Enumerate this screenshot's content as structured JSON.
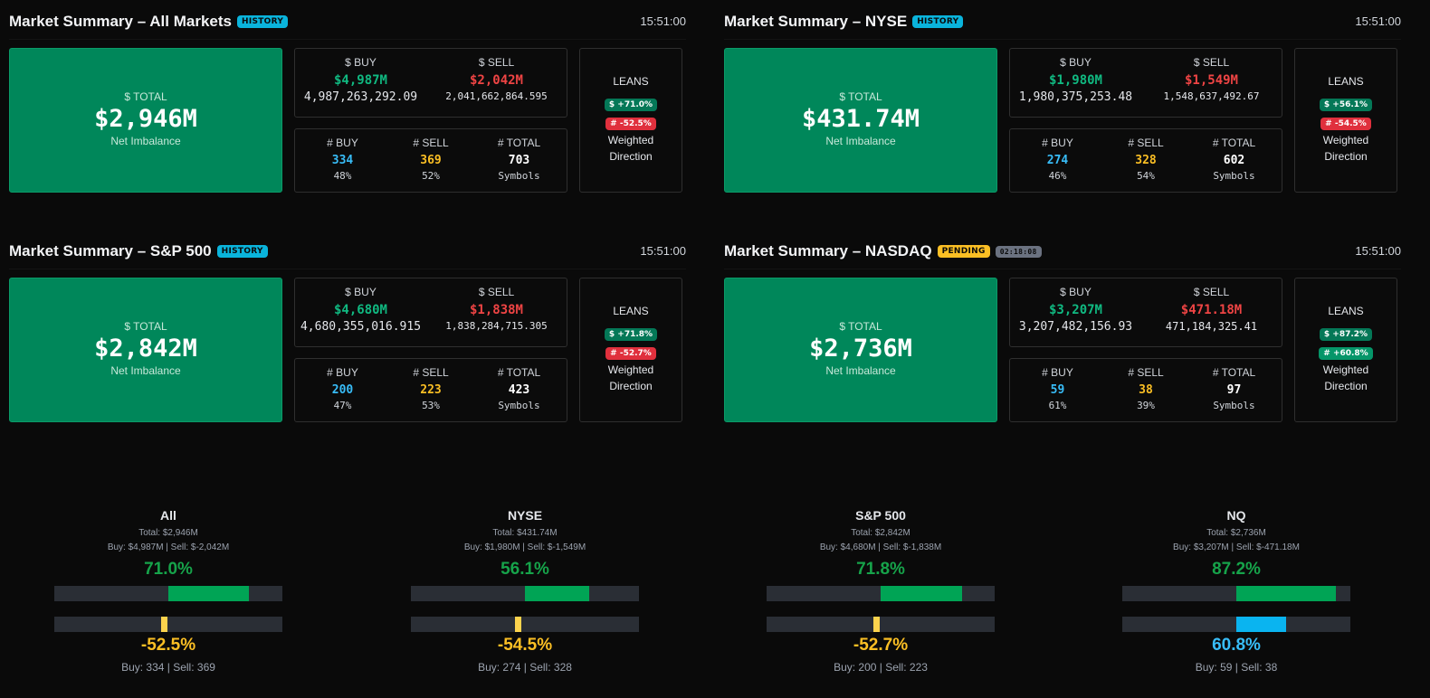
{
  "panels": [
    {
      "title": "Market Summary – All Markets",
      "badge": "HISTORY",
      "time": "15:51:00",
      "total_label": "$ TOTAL",
      "total_value": "$2,946M",
      "total_sub": "Net Imbalance",
      "buy_label": "$ BUY",
      "sell_label": "$ SELL",
      "buy_value": "$4,987M",
      "sell_value": "$2,042M",
      "buy_raw": "4,987,263,292.09",
      "sell_raw": "2,041,662,864.595",
      "count_buy_label": "# BUY",
      "count_sell_label": "# SELL",
      "count_total_label": "# TOTAL",
      "count_buy": "334",
      "count_sell": "369",
      "count_total": "703",
      "count_buy_pct": "48%",
      "count_sell_pct": "52%",
      "symbols_label": "Symbols",
      "leans_title": "LEANS",
      "lean_dollar": "$ +71.0%",
      "lean_count": "# -52.5%",
      "weighted": "Weighted",
      "direction": "Direction"
    },
    {
      "title": "Market Summary – NYSE",
      "badge": "HISTORY",
      "time": "15:51:00",
      "total_label": "$ TOTAL",
      "total_value": "$431.74M",
      "total_sub": "Net Imbalance",
      "buy_label": "$ BUY",
      "sell_label": "$ SELL",
      "buy_value": "$1,980M",
      "sell_value": "$1,549M",
      "buy_raw": "1,980,375,253.48",
      "sell_raw": "1,548,637,492.67",
      "count_buy_label": "# BUY",
      "count_sell_label": "# SELL",
      "count_total_label": "# TOTAL",
      "count_buy": "274",
      "count_sell": "328",
      "count_total": "602",
      "count_buy_pct": "46%",
      "count_sell_pct": "54%",
      "symbols_label": "Symbols",
      "leans_title": "LEANS",
      "lean_dollar": "$ +56.1%",
      "lean_count": "# -54.5%",
      "weighted": "Weighted",
      "direction": "Direction"
    },
    {
      "title": "Market Summary – S&P 500",
      "badge": "HISTORY",
      "time": "15:51:00",
      "total_label": "$ TOTAL",
      "total_value": "$2,842M",
      "total_sub": "Net Imbalance",
      "buy_label": "$ BUY",
      "sell_label": "$ SELL",
      "buy_value": "$4,680M",
      "sell_value": "$1,838M",
      "buy_raw": "4,680,355,016.915",
      "sell_raw": "1,838,284,715.305",
      "count_buy_label": "# BUY",
      "count_sell_label": "# SELL",
      "count_total_label": "# TOTAL",
      "count_buy": "200",
      "count_sell": "223",
      "count_total": "423",
      "count_buy_pct": "47%",
      "count_sell_pct": "53%",
      "symbols_label": "Symbols",
      "leans_title": "LEANS",
      "lean_dollar": "$ +71.8%",
      "lean_count": "# -52.7%",
      "weighted": "Weighted",
      "direction": "Direction"
    },
    {
      "title": "Market Summary – NASDAQ",
      "badge": "PENDING",
      "timer": "02:18:08",
      "time": "15:51:00",
      "total_label": "$ TOTAL",
      "total_value": "$2,736M",
      "total_sub": "Net Imbalance",
      "buy_label": "$ BUY",
      "sell_label": "$ SELL",
      "buy_value": "$3,207M",
      "sell_value": "$471.18M",
      "buy_raw": "3,207,482,156.93",
      "sell_raw": "471,184,325.41",
      "count_buy_label": "# BUY",
      "count_sell_label": "# SELL",
      "count_total_label": "# TOTAL",
      "count_buy": "59",
      "count_sell": "38",
      "count_total": "97",
      "count_buy_pct": "61%",
      "count_sell_pct": "39%",
      "symbols_label": "Symbols",
      "leans_title": "LEANS",
      "lean_dollar": "$ +87.2%",
      "lean_count": "# +60.8%",
      "weighted": "Weighted",
      "direction": "Direction"
    }
  ],
  "gauges": [
    {
      "title": "All",
      "total_line": "Total: $2,946M",
      "buysell_line": "Buy: $4,987M | Sell: $-2,042M",
      "dollar_pct": "71.0%",
      "dollar_lean": 71.0,
      "count_pct": "-52.5%",
      "count_lean": -52.5,
      "count_color": "yellow",
      "bottom": "Buy: 334 | Sell: 369"
    },
    {
      "title": "NYSE",
      "total_line": "Total: $431.74M",
      "buysell_line": "Buy: $1,980M | Sell: $-1,549M",
      "dollar_pct": "56.1%",
      "dollar_lean": 56.1,
      "count_pct": "-54.5%",
      "count_lean": -54.5,
      "count_color": "yellow",
      "bottom": "Buy: 274 | Sell: 328"
    },
    {
      "title": "S&P 500",
      "total_line": "Total: $2,842M",
      "buysell_line": "Buy: $4,680M | Sell: $-1,838M",
      "dollar_pct": "71.8%",
      "dollar_lean": 71.8,
      "count_pct": "-52.7%",
      "count_lean": -52.7,
      "count_color": "yellow",
      "bottom": "Buy: 200 | Sell: 223"
    },
    {
      "title": "NQ",
      "total_line": "Total: $2,736M",
      "buysell_line": "Buy: $3,207M | Sell: $-471.18M",
      "dollar_pct": "87.2%",
      "dollar_lean": 87.2,
      "count_pct": "60.8%",
      "count_lean": 60.8,
      "count_color": "blue",
      "bottom": "Buy: 59 | Sell: 38"
    }
  ],
  "colors": {
    "accent_green": "#00875a",
    "buy_green": "#10b981",
    "sell_red": "#ef4444",
    "count_blue": "#38bdf8",
    "count_yellow": "#fbbf24",
    "bar_track": "#2a2e35"
  }
}
